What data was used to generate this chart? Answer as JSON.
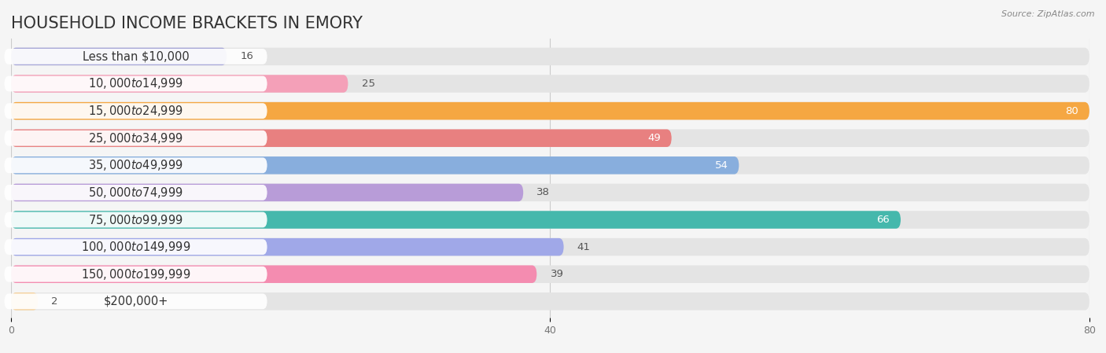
{
  "title": "HOUSEHOLD INCOME BRACKETS IN EMORY",
  "source": "Source: ZipAtlas.com",
  "categories": [
    "Less than $10,000",
    "$10,000 to $14,999",
    "$15,000 to $24,999",
    "$25,000 to $34,999",
    "$35,000 to $49,999",
    "$50,000 to $74,999",
    "$75,000 to $99,999",
    "$100,000 to $149,999",
    "$150,000 to $199,999",
    "$200,000+"
  ],
  "values": [
    16,
    25,
    80,
    49,
    54,
    38,
    66,
    41,
    39,
    2
  ],
  "colors": [
    "#a8a8d8",
    "#f4a0b8",
    "#f5a742",
    "#e88080",
    "#88aedd",
    "#b89cd8",
    "#45b8ac",
    "#a0a8e8",
    "#f48cb0",
    "#f5d09a"
  ],
  "xlim": [
    0,
    80
  ],
  "xticks": [
    0,
    40,
    80
  ],
  "background_color": "#f5f5f5",
  "bar_background_color": "#e4e4e4",
  "title_fontsize": 15,
  "label_fontsize": 10.5,
  "value_fontsize": 9.5,
  "bar_height": 0.65
}
